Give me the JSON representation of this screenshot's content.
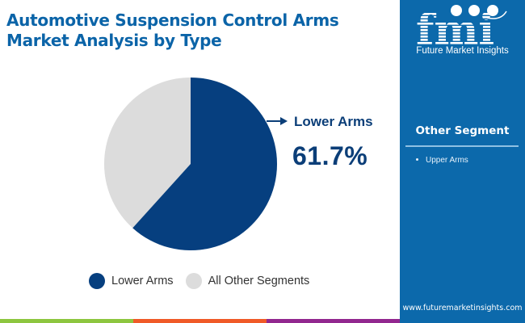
{
  "header": {
    "title": "Automotive Suspension Control Arms Market Analysis by Type"
  },
  "brand": {
    "logo_text": "fmi",
    "logo_subtitle": "Future Market Insights",
    "website": "www.futuremarketinsights.com",
    "colors": {
      "panel": "#0c69ab",
      "title": "#0b64a8",
      "bar_green": "#8dc63f",
      "bar_orange": "#f05a28",
      "bar_purple": "#92278f"
    }
  },
  "side_panel": {
    "heading": "Other Segment",
    "items": [
      "Upper Arms"
    ]
  },
  "callout": {
    "label": "Lower Arms",
    "value": "61.7%"
  },
  "legend": {
    "items": [
      {
        "label": "Lower Arms",
        "color": "#063f7f"
      },
      {
        "label": "All Other Segments",
        "color": "#dcdcdc"
      }
    ]
  },
  "chart_data": {
    "type": "pie",
    "title": "Automotive Suspension Control Arms Market Analysis by Type",
    "categories": [
      "Lower Arms",
      "All Other Segments"
    ],
    "values": [
      61.7,
      38.3
    ],
    "colors": [
      "#063f7f",
      "#dcdcdc"
    ],
    "start_angle": "12 o'clock, clockwise",
    "annotations": [
      {
        "label": "Lower Arms",
        "value": "61.7%"
      }
    ],
    "legend_position": "bottom"
  }
}
